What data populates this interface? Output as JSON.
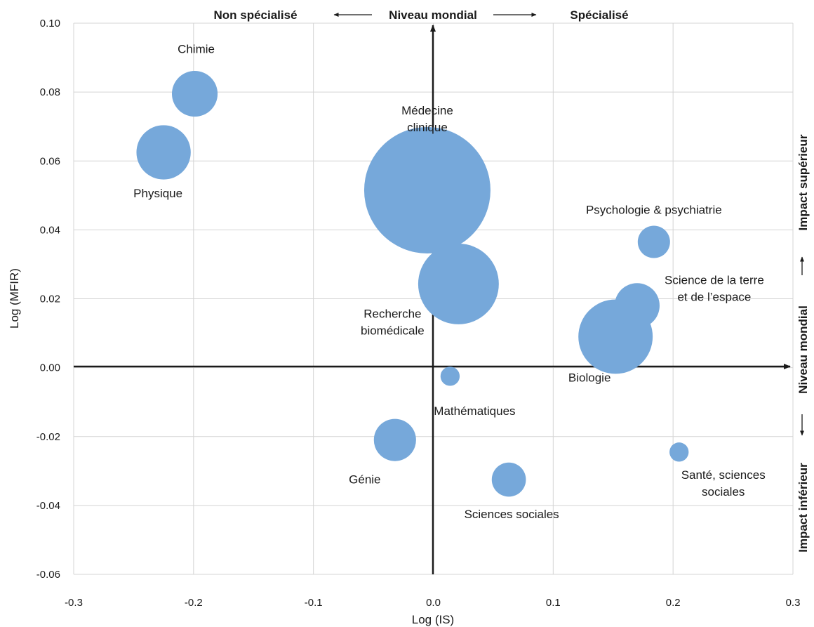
{
  "chart_data": {
    "type": "scatter",
    "subtype": "bubble",
    "xlabel": "Log (IS)",
    "ylabel": "Log (MFIR)",
    "xlim": [
      -0.3,
      0.3
    ],
    "ylim": [
      -0.06,
      0.1
    ],
    "x_ticks": [
      -0.3,
      -0.2,
      -0.1,
      0.0,
      0.1,
      0.2,
      0.3
    ],
    "x_tick_labels": [
      "-0.3",
      "-0.2",
      "-0.1",
      "0.0",
      "0.1",
      "0.2",
      "0.3"
    ],
    "y_ticks": [
      -0.06,
      -0.04,
      -0.02,
      0.0,
      0.02,
      0.04,
      0.06,
      0.08,
      0.1
    ],
    "y_tick_labels": [
      "-0.06",
      "-0.04",
      "-0.02",
      "0.00",
      "0.02",
      "0.04",
      "0.06",
      "0.08",
      "0.10"
    ],
    "grid": true,
    "bubble_color": "#76A8DA",
    "top_annotations": {
      "left": "Non spécialisé",
      "center": "Niveau mondial",
      "right": "Spécialisé"
    },
    "right_annotations": {
      "top": "Impact supérieur",
      "center": "Niveau mondial",
      "bottom": "Impact inférieur"
    },
    "points": [
      {
        "label": "Chimie",
        "x": -0.199,
        "y": 0.0795,
        "size": 3.4
      },
      {
        "label": "Physique",
        "x": -0.225,
        "y": 0.0625,
        "size": 4.8
      },
      {
        "label": "Médecine clinique",
        "x": -0.005,
        "y": 0.0515,
        "size": 26.0
      },
      {
        "label": "Recherche biomédicale",
        "x": 0.021,
        "y": 0.0243,
        "size": 10.6
      },
      {
        "label": "Psychologie & psychiatrie",
        "x": 0.184,
        "y": 0.0365,
        "size": 1.7
      },
      {
        "label": "Science de la terre et de l’espace",
        "x": 0.17,
        "y": 0.018,
        "size": 3.3
      },
      {
        "label": "Biologie",
        "x": 0.152,
        "y": 0.009,
        "size": 9.0
      },
      {
        "label": "Mathématiques",
        "x": 0.014,
        "y": -0.0025,
        "size": 0.6
      },
      {
        "label": "Génie",
        "x": -0.032,
        "y": -0.021,
        "size": 2.9
      },
      {
        "label": "Sciences sociales",
        "x": 0.063,
        "y": -0.0325,
        "size": 1.9
      },
      {
        "label": "Santé, sciences sociales",
        "x": 0.205,
        "y": -0.0245,
        "size": 0.6
      }
    ]
  }
}
